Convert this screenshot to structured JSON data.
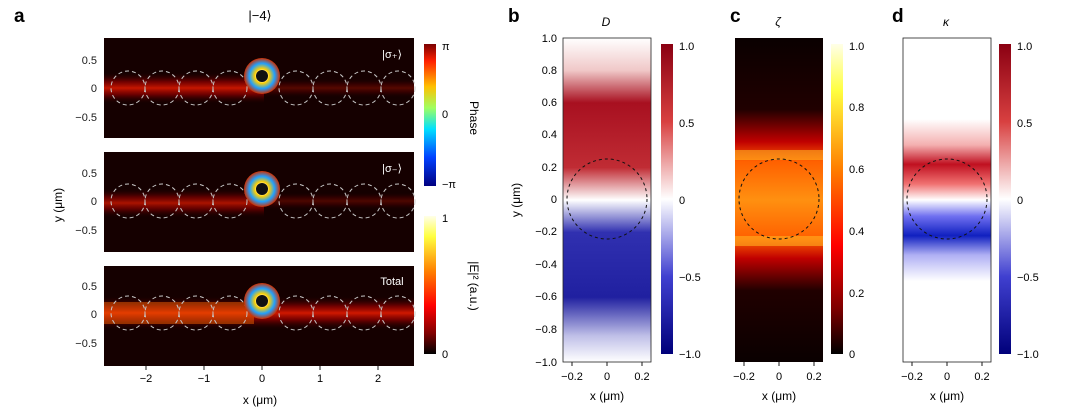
{
  "panel_labels": {
    "a": "a",
    "b": "b",
    "c": "c",
    "d": "d"
  },
  "panel_a": {
    "title": "|−4⟩",
    "subpanel_labels": [
      "|σ₊⟩",
      "|σ₋⟩",
      "Total"
    ],
    "xlabel": "x (μm)",
    "ylabel": "y (μm)",
    "x_ticks": [
      "−2",
      "−1",
      "0",
      "1",
      "2"
    ],
    "y_ticks": [
      "0.5",
      "0",
      "−0.5"
    ],
    "phase_colorbar": {
      "label": "Phase",
      "ticks": [
        "π",
        "0",
        "−π"
      ]
    },
    "intensity_colorbar": {
      "label": "|E|² (a.u.)",
      "ticks": [
        "1",
        "0"
      ]
    }
  },
  "panel_b": {
    "title": "D",
    "xlabel": "x (μm)",
    "ylabel": "y (μm)",
    "x_ticks": [
      "−0.2",
      "0",
      "0.2"
    ],
    "y_ticks": [
      "1.0",
      "0.8",
      "0.6",
      "0.4",
      "0.2",
      "0",
      "−0.2",
      "−0.4",
      "−0.6",
      "−0.8",
      "−1.0"
    ],
    "colorbar_ticks": [
      "1.0",
      "0.5",
      "0",
      "−0.5",
      "−1.0"
    ]
  },
  "panel_c": {
    "title": "ζ",
    "xlabel": "x (μm)",
    "x_ticks": [
      "−0.2",
      "0",
      "0.2"
    ],
    "colorbar_ticks": [
      "1.0",
      "0.8",
      "0.6",
      "0.4",
      "0.2",
      "0"
    ]
  },
  "panel_d": {
    "title": "κ",
    "xlabel": "x (μm)",
    "x_ticks": [
      "−0.2",
      "0",
      "0.2"
    ],
    "colorbar_ticks": [
      "1.0",
      "0.5",
      "0",
      "−0.5",
      "−1.0"
    ]
  },
  "colors": {
    "background": "#ffffff",
    "dark_field": "#150000",
    "dashed_circle": "#c8c8c8"
  }
}
